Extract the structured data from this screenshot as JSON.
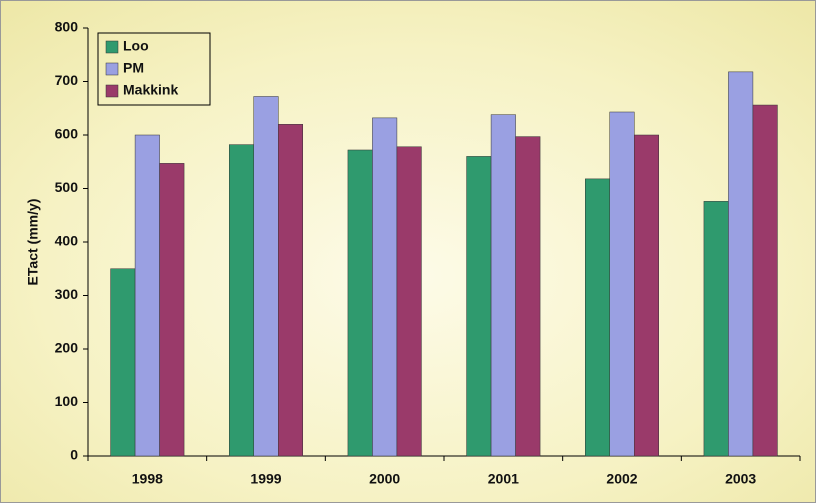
{
  "chart_data": {
    "type": "bar",
    "y_label": "ETact (mm/y)",
    "categories": [
      "1998",
      "1999",
      "2000",
      "2001",
      "2002",
      "2003"
    ],
    "series": [
      {
        "name": "Loo",
        "color": "#2f9a6e",
        "values": [
          350,
          582,
          572,
          560,
          518,
          476
        ]
      },
      {
        "name": "PM",
        "color": "#9aa0e2",
        "values": [
          600,
          672,
          632,
          638,
          643,
          718
        ]
      },
      {
        "name": "Makkink",
        "color": "#9a3a6a",
        "values": [
          547,
          620,
          578,
          597,
          600,
          656
        ]
      }
    ],
    "ylim": [
      0,
      800
    ],
    "yticks": [
      0,
      100,
      200,
      300,
      400,
      500,
      600,
      700,
      800
    ],
    "grid": false,
    "legend": "upper left"
  }
}
